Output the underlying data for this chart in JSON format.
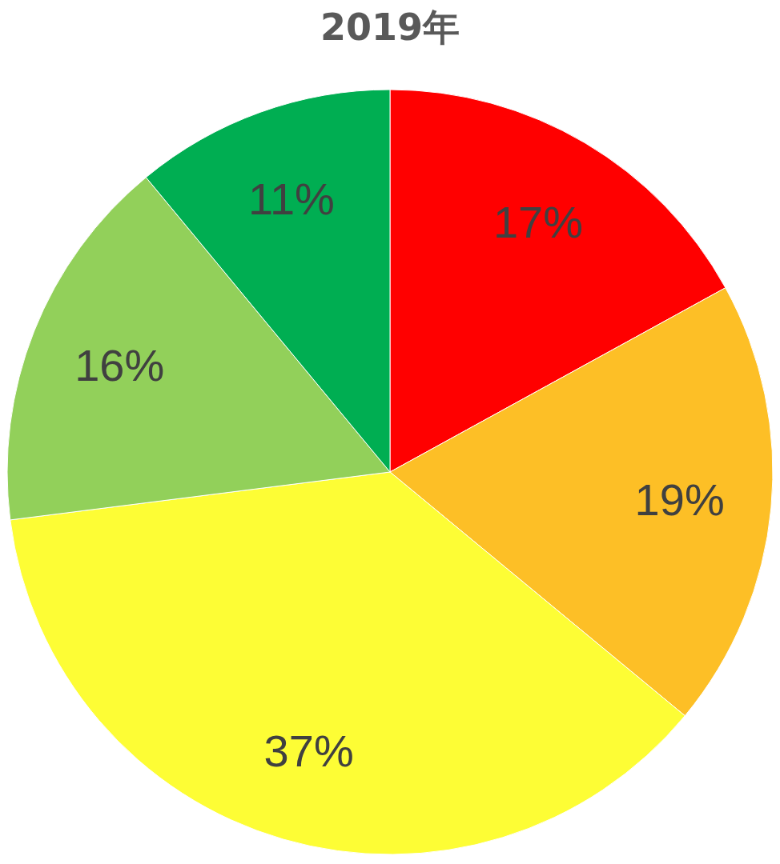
{
  "chart_data": {
    "type": "pie",
    "title": "2019年",
    "categories": [
      null,
      null,
      null,
      null,
      null
    ],
    "values": [
      17,
      19,
      37,
      16,
      11
    ],
    "colors": [
      "#ff0000",
      "#fdbf26",
      "#fdfd35",
      "#92d05a",
      "#00ae52"
    ],
    "value_labels": [
      "17%",
      "19%",
      "37%",
      "16%",
      "11%"
    ]
  }
}
